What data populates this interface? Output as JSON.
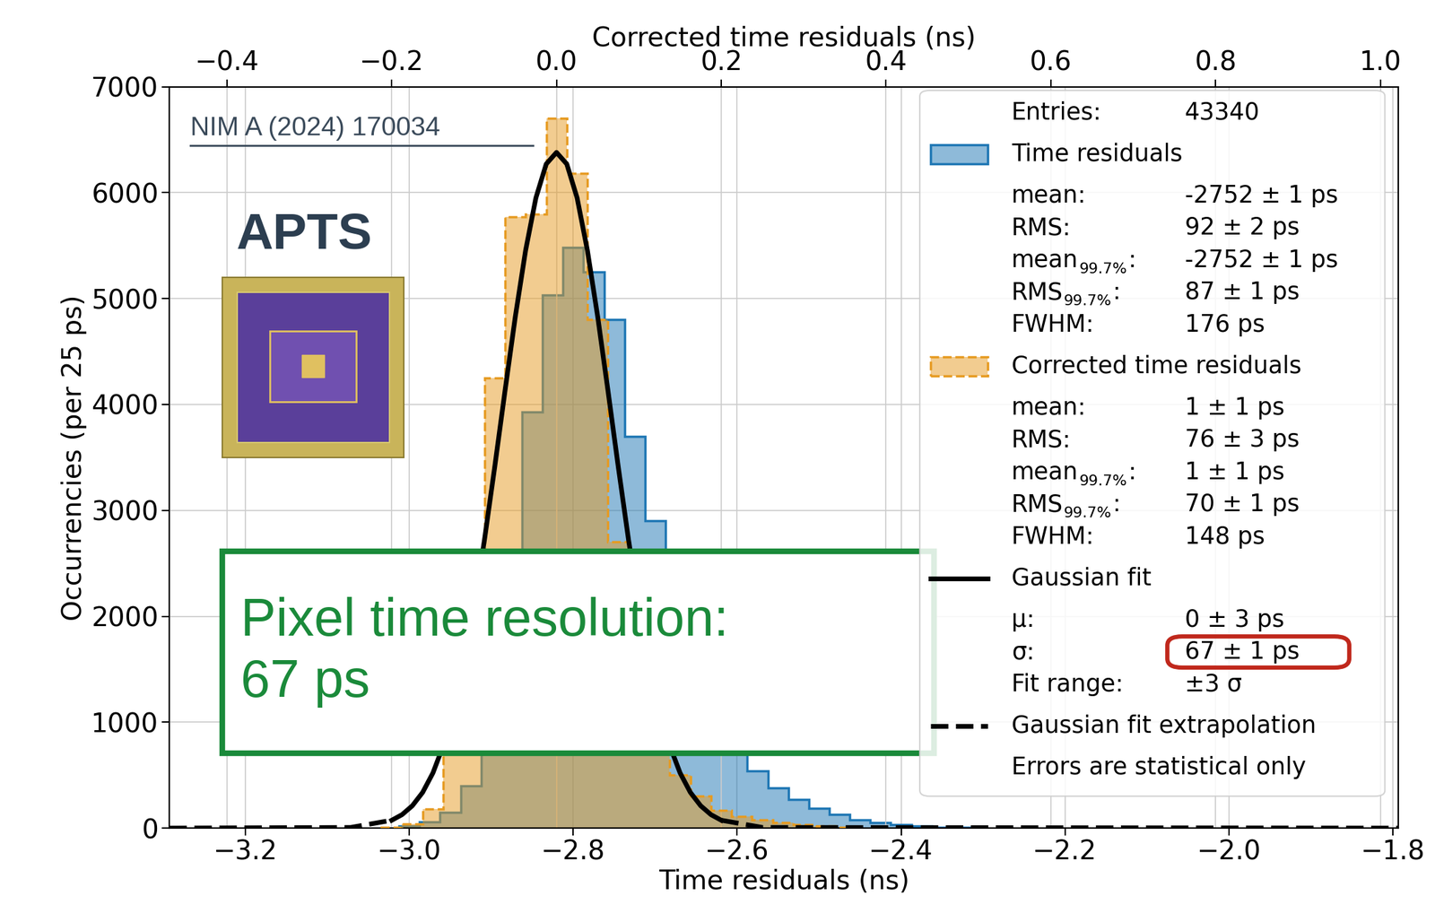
{
  "chart_data": {
    "type": "histogram",
    "x_label": "Time residuals (ns)",
    "x2_label": "Corrected time residuals (ns)",
    "y_label": "Occurrencies (per 25 ps)",
    "xlim": [
      -3.293,
      -1.793
    ],
    "xticks": [
      {
        "value": -3.2,
        "label": "−3.2"
      },
      {
        "value": -3.0,
        "label": "−3.0"
      },
      {
        "value": -2.8,
        "label": "−2.8"
      },
      {
        "value": -2.6,
        "label": "−2.6"
      },
      {
        "value": -2.4,
        "label": "−2.4"
      },
      {
        "value": -2.2,
        "label": "−2.2"
      },
      {
        "value": -2.0,
        "label": "−2.0"
      },
      {
        "value": -1.8,
        "label": "−1.8"
      }
    ],
    "x2lim": [
      -0.47,
      1.022
    ],
    "x2ticks": [
      {
        "value": -0.4,
        "label": "−0.4"
      },
      {
        "value": -0.2,
        "label": "−0.2"
      },
      0.0,
      0.2,
      0.4,
      0.6,
      0.8,
      1.0
    ],
    "ylim": [
      0,
      7000
    ],
    "yticks": [
      0,
      1000,
      2000,
      3000,
      4000,
      5000,
      6000,
      7000
    ],
    "grid": true,
    "legend": "upper right",
    "legend_header": {
      "label": "Entries:",
      "value": "43340"
    },
    "legend_footer": "Errors are statistical only",
    "annotations": [
      "Pixel time resolution:\n67 ps",
      "NIM A (2024) 170034",
      "APTS"
    ],
    "series": [
      {
        "name": "Time residuals",
        "type": "histogram",
        "color": "#1f77b4",
        "line_style": "solid",
        "axis": "x",
        "bins": [
          -3.0125,
          -2.9875,
          -2.9625,
          -2.9375,
          -2.9125,
          -2.8875,
          -2.8625,
          -2.8375,
          -2.8125,
          -2.7875,
          -2.7625,
          -2.7375,
          -2.7125,
          -2.6875,
          -2.6625,
          -2.6375,
          -2.6125,
          -2.5875,
          -2.5625,
          -2.5375,
          -2.5125,
          -2.4875,
          -2.4625,
          -2.4375,
          -2.4125,
          -2.3875,
          -2.3625,
          -2.3375,
          -2.3125
        ],
        "values": [
          20,
          60,
          150,
          400,
          1000,
          2100,
          3930,
          5030,
          5480,
          5250,
          4800,
          3700,
          2900,
          2000,
          1400,
          1000,
          720,
          540,
          380,
          270,
          190,
          130,
          80,
          50,
          30,
          20,
          10,
          5
        ],
        "stats": [
          {
            "label": "mean:",
            "value": "-2752 ± 1 ps"
          },
          {
            "label": "RMS:",
            "value": "92 ± 2 ps"
          },
          {
            "label": "mean",
            "subscript": "99.7%",
            "suffix": ":",
            "value": "-2752 ± 1 ps"
          },
          {
            "label": "RMS",
            "subscript": "99.7%",
            "suffix": ":",
            "value": "87 ± 1 ps"
          },
          {
            "label": "FWHM:",
            "value": "176 ps"
          }
        ]
      },
      {
        "name": "Corrected time residuals",
        "type": "histogram",
        "color": "#e69b22",
        "line_style": "dashed",
        "axis": "x2",
        "bins": [
          -0.2125,
          -0.1875,
          -0.1625,
          -0.1375,
          -0.1125,
          -0.0875,
          -0.0625,
          -0.0375,
          -0.0125,
          0.0125,
          0.0375,
          0.0625,
          0.0875,
          0.1125,
          0.1375,
          0.1625,
          0.1875,
          0.2125,
          0.2375,
          0.2625,
          0.2875,
          0.3125,
          0.3375,
          0.3625
        ],
        "values": [
          10,
          40,
          180,
          900,
          2600,
          4250,
          5770,
          5800,
          6700,
          6180,
          4800,
          2700,
          1500,
          800,
          500,
          300,
          170,
          110,
          80,
          50,
          30,
          20,
          10
        ],
        "stats": [
          {
            "label": "mean:",
            "value": "1 ± 1 ps"
          },
          {
            "label": "RMS:",
            "value": "76 ± 3 ps"
          },
          {
            "label": "mean",
            "subscript": "99.7%",
            "suffix": ":",
            "value": "1 ± 1 ps"
          },
          {
            "label": "RMS",
            "subscript": "99.7%",
            "suffix": ":",
            "value": "70 ± 1 ps"
          },
          {
            "label": "FWHM:",
            "value": "148 ps"
          }
        ]
      },
      {
        "name": "Gaussian fit",
        "type": "line",
        "color": "#000000",
        "line_style": "solid",
        "axis": "x2",
        "x": [
          -0.2,
          -0.1875,
          -0.175,
          -0.1625,
          -0.15,
          -0.1375,
          -0.125,
          -0.1125,
          -0.1,
          -0.0875,
          -0.075,
          -0.0625,
          -0.05,
          -0.0375,
          -0.025,
          -0.0125,
          0,
          0.0125,
          0.025,
          0.0375,
          0.05,
          0.0625,
          0.075,
          0.0875,
          0.1,
          0.1125,
          0.125,
          0.1375,
          0.15,
          0.1625,
          0.175,
          0.1875,
          0.2
        ],
        "values": [
          74,
          127,
          211,
          337,
          521,
          777,
          1119,
          1558,
          2094,
          2719,
          3410,
          4129,
          4829,
          5455,
          5951,
          6270,
          6380,
          6270,
          5951,
          5455,
          4829,
          4129,
          3410,
          2719,
          2094,
          1558,
          1119,
          777,
          521,
          337,
          211,
          127,
          74
        ],
        "stats": [
          {
            "label": "μ:",
            "value": "0 ± 3 ps"
          },
          {
            "label": "σ:",
            "value": "67 ± 1 ps"
          },
          {
            "label": "Fit range:",
            "value": "±3 σ"
          }
        ]
      },
      {
        "name": "Gaussian fit extrapolation",
        "type": "line",
        "color": "#000000",
        "line_style": "dashed",
        "axis": "x2",
        "x": [
          -0.47,
          -0.25,
          -0.2,
          0,
          0.2,
          0.25,
          1.022
        ],
        "values": [
          0,
          6,
          74,
          null,
          74,
          6,
          0
        ]
      }
    ]
  }
}
